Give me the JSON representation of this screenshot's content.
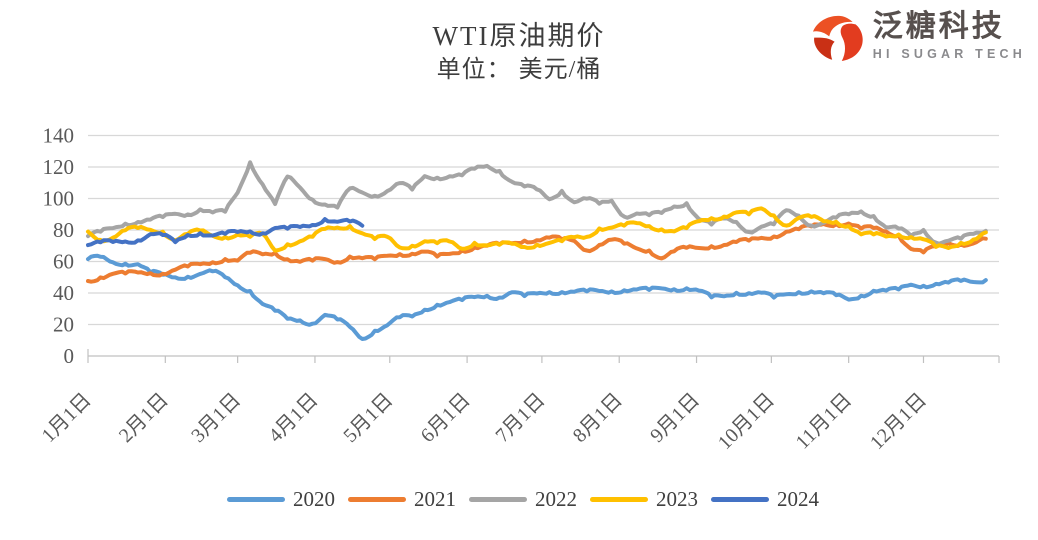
{
  "header": {
    "title": "WTI原油期价",
    "subtitle": "单位： 美元/桶"
  },
  "logo": {
    "name_cn": "泛糖科技",
    "name_en": "HI SUGAR TECH",
    "accent_color": "#e8432a",
    "text_color": "#57504e"
  },
  "chart_data": {
    "type": "line",
    "title": "WTI原油期价",
    "subtitle": "单位：美元/桶",
    "ylabel": "美元/桶",
    "ylim": [
      0,
      140
    ],
    "yticks": [
      0,
      20,
      40,
      60,
      80,
      100,
      120,
      140
    ],
    "grid": "horizontal",
    "legend_position": "bottom",
    "x_axis": {
      "unit": "day_of_year",
      "tick_labels": [
        "1月1日",
        "2月1日",
        "3月1日",
        "4月1日",
        "5月1日",
        "6月1日",
        "7月1日",
        "8月1日",
        "9月1日",
        "10月1日",
        "11月1日",
        "12月1日"
      ],
      "tick_days": [
        1,
        32,
        61,
        92,
        122,
        153,
        183,
        214,
        245,
        275,
        306,
        336
      ]
    },
    "sample_days": [
      1,
      6,
      11,
      16,
      21,
      26,
      31,
      36,
      41,
      46,
      51,
      56,
      61,
      66,
      71,
      76,
      81,
      86,
      91,
      96,
      101,
      106,
      111,
      116,
      121,
      126,
      131,
      136,
      141,
      146,
      151,
      156,
      161,
      166,
      171,
      176,
      181,
      186,
      191,
      196,
      201,
      206,
      211,
      216,
      221,
      226,
      231,
      236,
      241,
      246,
      251,
      256,
      261,
      266,
      271,
      276,
      281,
      286,
      291,
      296,
      301,
      306,
      311,
      316,
      321,
      326,
      331,
      336,
      341,
      346,
      351,
      356,
      361
    ],
    "series": [
      {
        "name": "2020",
        "color": "#5B9BD5",
        "values": [
          61.5,
          63.0,
          59.5,
          58.6,
          58.3,
          53.2,
          51.6,
          49.9,
          50.3,
          52.1,
          53.8,
          50.0,
          44.9,
          41.3,
          33.0,
          28.7,
          23.6,
          22.6,
          20.5,
          26.1,
          23.2,
          18.5,
          10.8,
          16.0,
          19.5,
          24.6,
          25.1,
          29.4,
          32.5,
          34.2,
          35.5,
          37.4,
          38.2,
          37.1,
          40.5,
          38.0,
          39.7,
          40.6,
          40.6,
          40.8,
          41.0,
          41.3,
          41.0,
          41.7,
          42.2,
          42.0,
          42.9,
          42.4,
          43.0,
          41.5,
          37.3,
          37.9,
          40.1,
          39.9,
          40.2,
          37.1,
          39.2,
          40.6,
          41.0,
          39.9,
          38.6,
          35.8,
          38.3,
          41.4,
          41.5,
          42.2,
          45.3,
          44.6,
          45.8,
          46.6,
          47.7,
          47.0,
          48.2
        ]
      },
      {
        "name": "2021",
        "color": "#ED7D31",
        "values": [
          47.6,
          49.9,
          52.2,
          52.4,
          53.0,
          52.6,
          52.2,
          54.8,
          56.8,
          58.3,
          59.5,
          61.5,
          60.6,
          65.5,
          64.6,
          65.4,
          61.4,
          59.8,
          60.6,
          61.5,
          59.6,
          63.1,
          62.1,
          61.4,
          63.6,
          64.7,
          64.9,
          66.3,
          63.1,
          64.8,
          66.9,
          68.8,
          70.0,
          70.9,
          71.6,
          73.3,
          73.5,
          75.2,
          74.1,
          73.1,
          67.0,
          70.5,
          73.9,
          71.3,
          68.3,
          67.0,
          62.0,
          66.5,
          68.7,
          68.6,
          69.7,
          70.5,
          72.4,
          73.3,
          75.0,
          75.9,
          78.9,
          80.5,
          82.3,
          83.8,
          83.6,
          84.1,
          80.9,
          81.3,
          79.0,
          76.5,
          68.0,
          65.8,
          69.5,
          71.7,
          70.9,
          71.5,
          74.5
        ]
      },
      {
        "name": "2022",
        "color": "#A5A5A5",
        "values": [
          76.1,
          78.9,
          81.2,
          84.0,
          85.1,
          86.6,
          88.2,
          90.3,
          89.9,
          93.1,
          91.1,
          91.6,
          103.7,
          123.0,
          109.0,
          96.5,
          114.0,
          107.0,
          99.3,
          96.2,
          94.3,
          106.4,
          103.8,
          101.7,
          104.7,
          109.8,
          105.7,
          114.2,
          113.2,
          114.1,
          114.7,
          118.9,
          120.7,
          117.5,
          110.6,
          107.6,
          105.8,
          99.5,
          104.8,
          97.6,
          99.9,
          96.7,
          98.6,
          88.5,
          90.5,
          89.4,
          90.8,
          94.9,
          97.0,
          86.9,
          83.5,
          87.3,
          85.1,
          78.7,
          82.1,
          83.6,
          92.6,
          89.1,
          82.8,
          84.5,
          87.9,
          90.0,
          91.8,
          88.9,
          81.6,
          80.9,
          76.3,
          80.0,
          72.0,
          73.2,
          74.5,
          77.5,
          79.5
        ]
      },
      {
        "name": "2023",
        "color": "#FFC000",
        "values": [
          79.0,
          73.7,
          75.1,
          79.9,
          81.3,
          80.1,
          78.9,
          73.4,
          77.5,
          79.7,
          76.3,
          75.4,
          77.0,
          75.7,
          77.6,
          66.9,
          70.9,
          72.8,
          75.7,
          80.7,
          81.5,
          82.5,
          77.9,
          74.3,
          75.7,
          68.9,
          70.0,
          72.8,
          71.6,
          72.7,
          68.1,
          71.8,
          70.2,
          70.6,
          71.3,
          69.2,
          70.6,
          71.8,
          72.9,
          75.4,
          75.6,
          81.0,
          81.5,
          82.8,
          84.4,
          82.5,
          80.4,
          79.1,
          81.2,
          85.6,
          87.5,
          88.5,
          91.2,
          90.0,
          93.7,
          89.2,
          82.8,
          87.7,
          88.3,
          85.5,
          85.2,
          82.5,
          77.3,
          77.2,
          75.9,
          77.1,
          75.5,
          74.1,
          69.3,
          68.6,
          71.8,
          73.9,
          78.5
        ]
      },
      {
        "name": "2024",
        "color": "#4472C4",
        "values": [
          70.4,
          72.2,
          72.4,
          72.7,
          73.4,
          77.4,
          76.8,
          72.3,
          76.8,
          78.0,
          76.5,
          77.6,
          78.7,
          79.1,
          77.9,
          81.3,
          80.8,
          81.9,
          83.2,
          86.9,
          85.2,
          85.4,
          82.7
        ]
      }
    ]
  }
}
